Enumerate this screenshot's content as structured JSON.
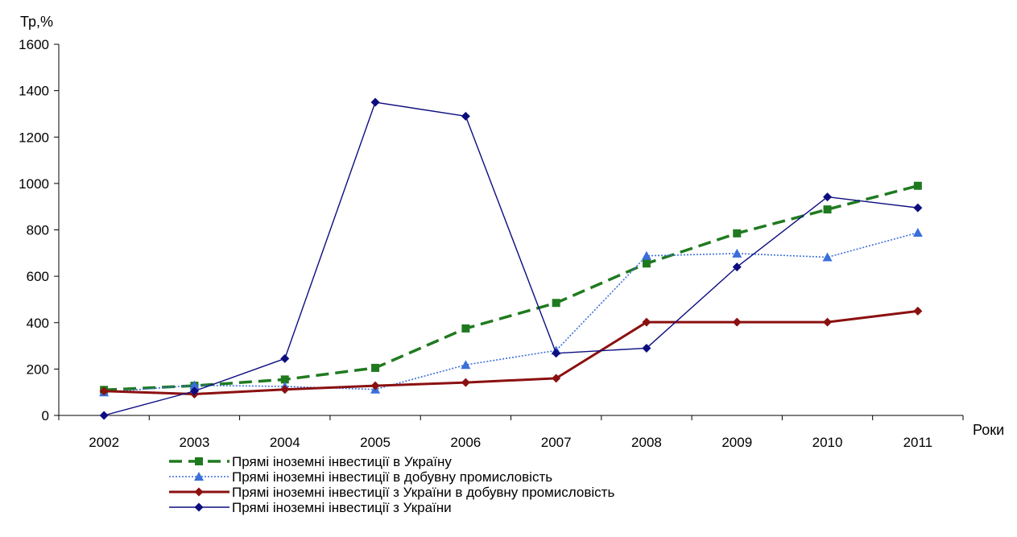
{
  "chart_data": {
    "type": "line",
    "title": "",
    "xlabel": "Роки",
    "ylabel": "Тр,%",
    "categories": [
      "2002",
      "2003",
      "2004",
      "2005",
      "2006",
      "2007",
      "2008",
      "2009",
      "2010",
      "2011"
    ],
    "ylim": [
      0,
      1600
    ],
    "yticks": [
      0,
      200,
      400,
      600,
      800,
      1000,
      1200,
      1400,
      1600
    ],
    "grid": false,
    "legend_position": "bottom",
    "series": [
      {
        "name": "Прямі іноземні інвестиції в Україну",
        "values": [
          110,
          128,
          155,
          205,
          375,
          485,
          655,
          785,
          888,
          990
        ],
        "color": "#1f7a1f",
        "line_style": "dashed",
        "marker": "square"
      },
      {
        "name": "Прямі іноземні інвестиції в добувну промисловість",
        "values": [
          100,
          130,
          125,
          112,
          218,
          280,
          688,
          698,
          682,
          788
        ],
        "color": "#3a6fd8",
        "line_style": "dotted",
        "marker": "triangle"
      },
      {
        "name": "Прямі іноземні інвестиції з України в добувну промисловість",
        "values": [
          105,
          92,
          112,
          128,
          142,
          160,
          402,
          402,
          402,
          450
        ],
        "color": "#8b1010",
        "line_style": "solid-thick",
        "marker": "diamond"
      },
      {
        "name": "Прямі іноземні інвестиції з України",
        "values": [
          0,
          105,
          245,
          1350,
          1290,
          268,
          290,
          640,
          942,
          895
        ],
        "color": "#0d0d80",
        "line_style": "solid-thin",
        "marker": "diamond"
      }
    ]
  }
}
